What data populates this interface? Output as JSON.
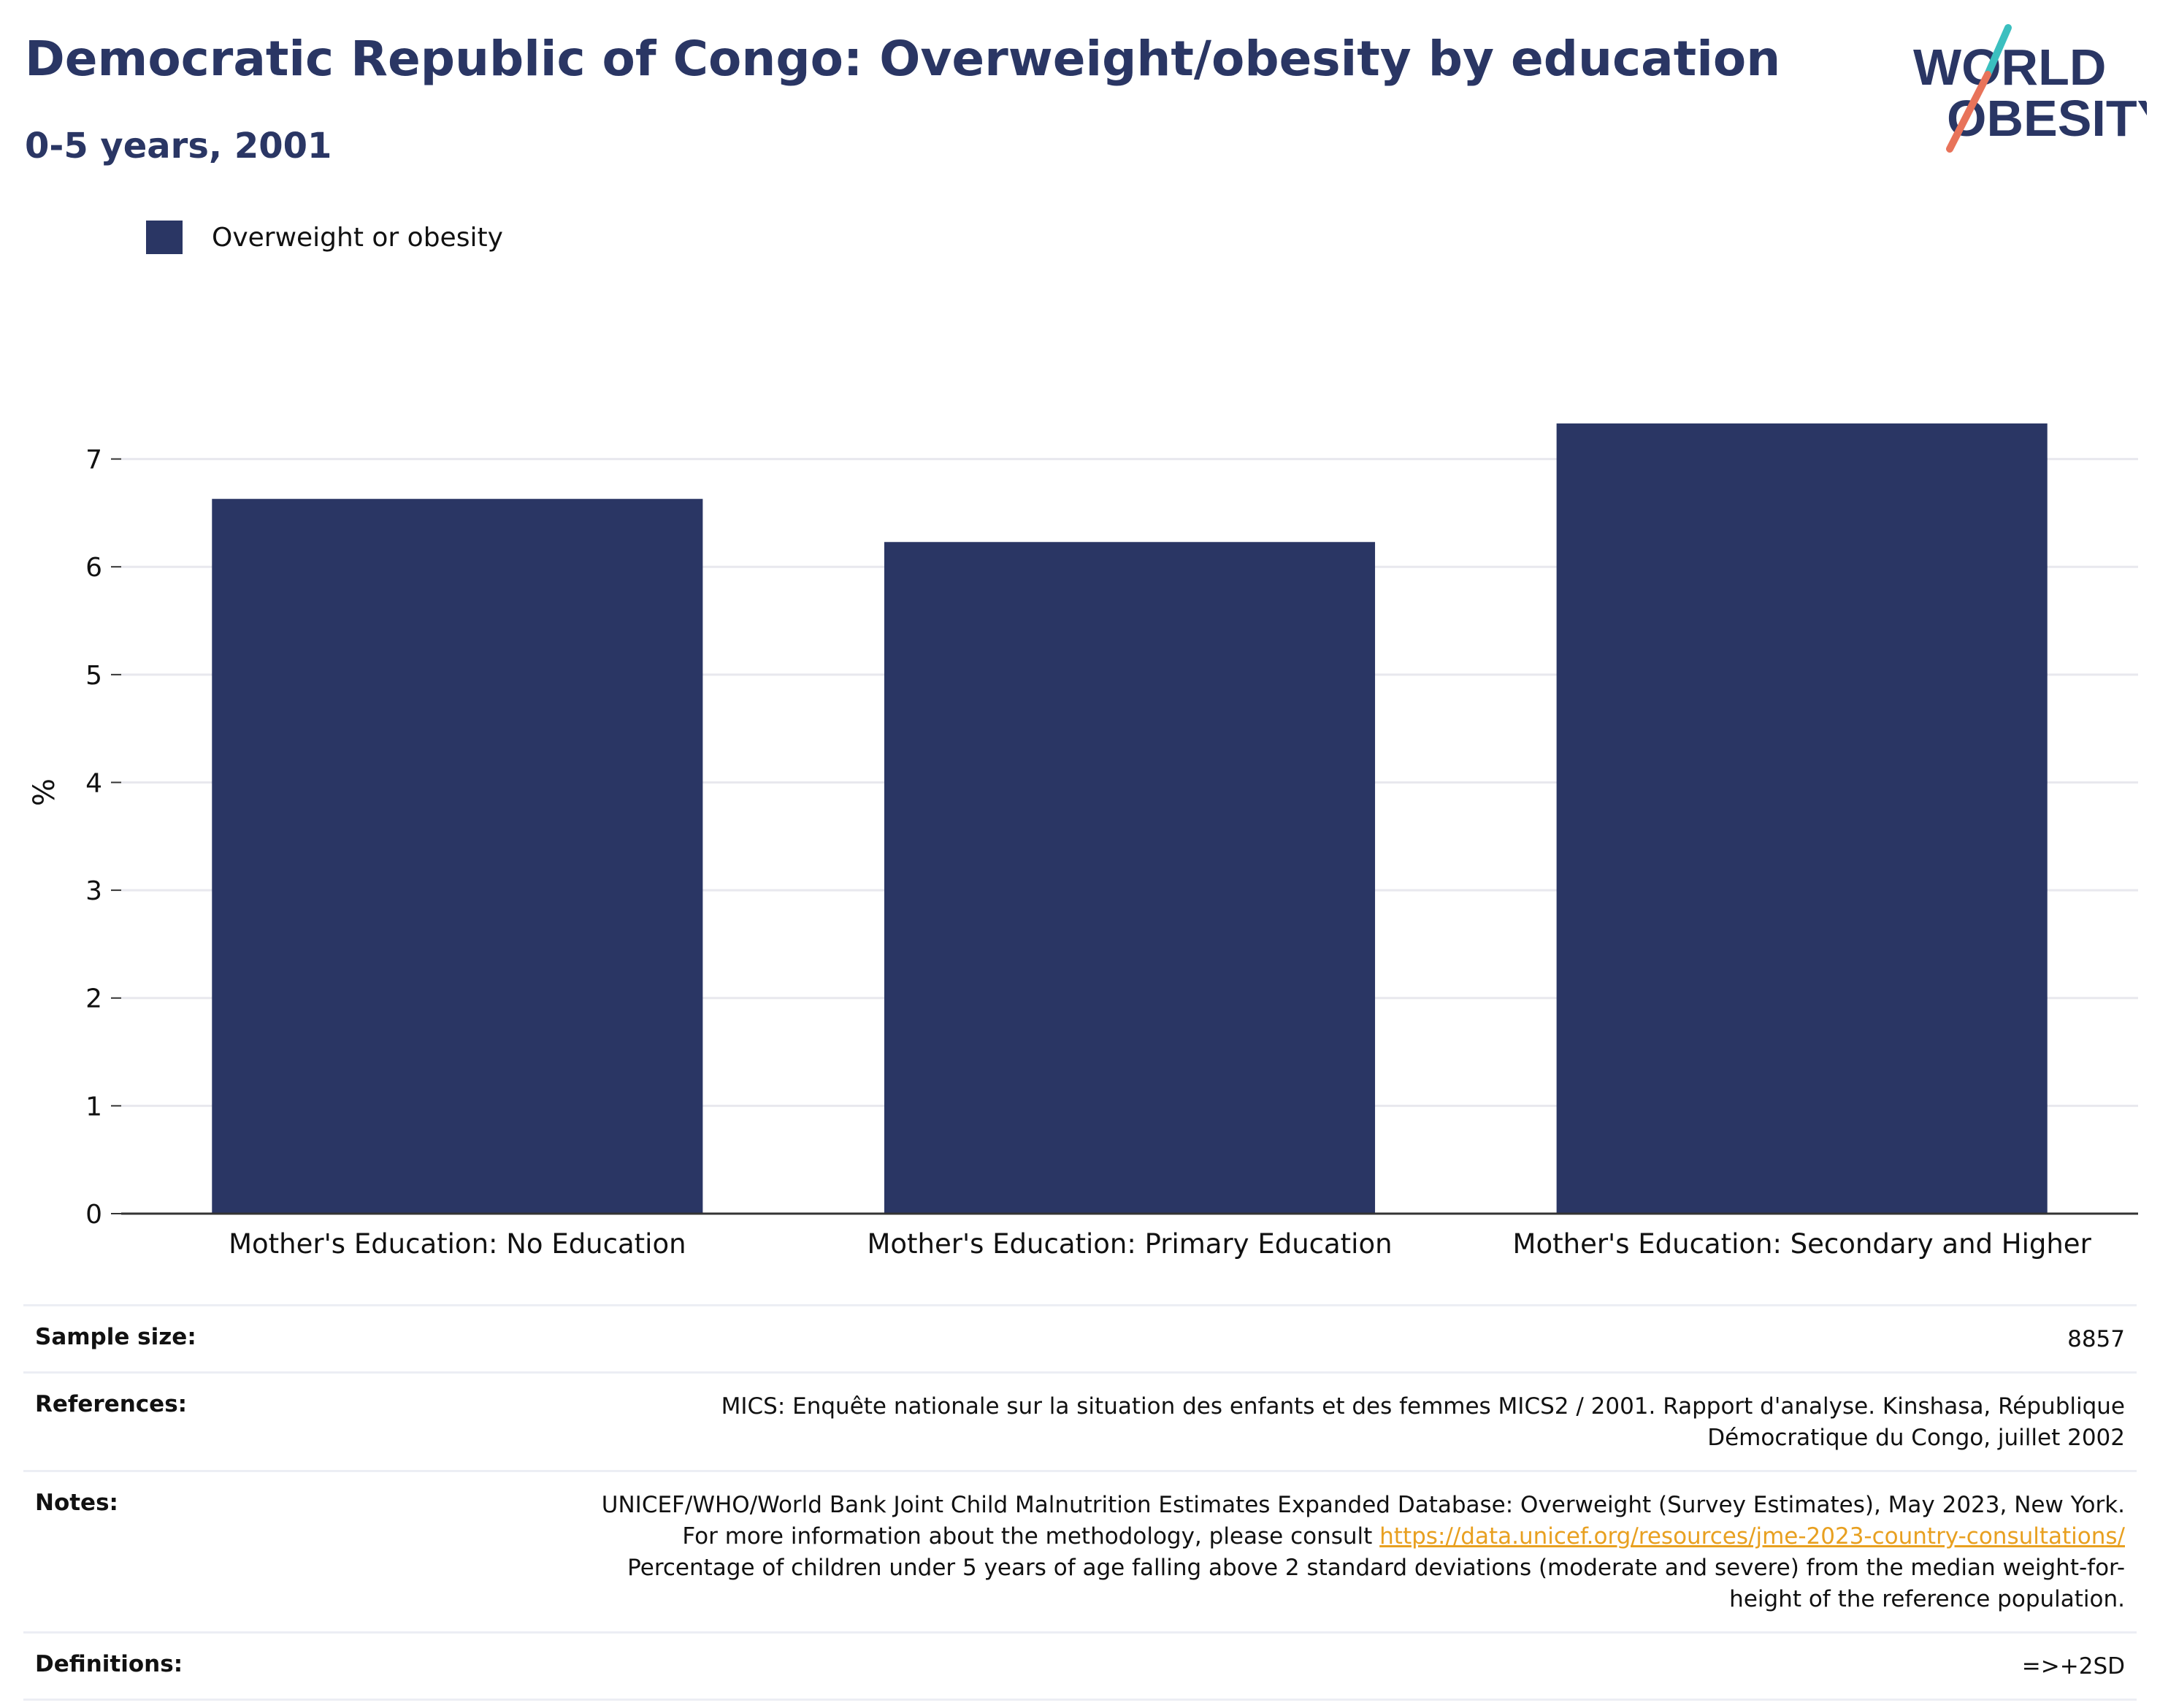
{
  "header": {
    "title": "Democratic Republic of Congo: Overweight/obesity by education",
    "subtitle": "0-5 years, 2001"
  },
  "logo": {
    "line1": "WORLD",
    "line2": "OBESITY",
    "text_color": "#2a3664",
    "slash_top_color": "#3bbfbf",
    "slash_bottom_color": "#e8735a"
  },
  "legend": {
    "label": "Overweight or obesity",
    "color": "#2a3664"
  },
  "chart_data": {
    "type": "bar",
    "categories": [
      "Mother's Education: No Education",
      "Mother's Education: Primary Education",
      "Mother's Education: Secondary and Higher"
    ],
    "series": [
      {
        "name": "Overweight or obesity",
        "values": [
          6.63,
          6.23,
          7.33
        ],
        "color": "#2a3664"
      }
    ],
    "ylabel": "%",
    "ylim": [
      0,
      7.6
    ],
    "yticks": [
      "0",
      "1",
      "2",
      "3",
      "4",
      "5",
      "6",
      "7"
    ],
    "grid": true,
    "legend_position": "top-left"
  },
  "info": {
    "sample_size": {
      "key": "Sample size:",
      "value": "8857"
    },
    "references": {
      "key": "References:",
      "value": "MICS: Enquête nationale sur la situation des enfants et des femmes MICS2 / 2001. Rapport d'analyse. Kinshasa, République Démocratique du Congo, juillet 2002"
    },
    "notes": {
      "key": "Notes:",
      "value_before_link": "UNICEF/WHO/World Bank Joint Child Malnutrition Estimates Expanded Database: Overweight (Survey Estimates), May 2023, New York. For more information about the methodology, please consult ",
      "link": "https://data.unicef.org/resources/jme-2023-country-consultations/",
      "value_after_link": " Percentage of children under 5 years of age falling above 2 standard deviations (moderate and severe) from the median weight-for-height of the reference population."
    },
    "definitions": {
      "key": "Definitions:",
      "value": "=>+2SD"
    }
  }
}
